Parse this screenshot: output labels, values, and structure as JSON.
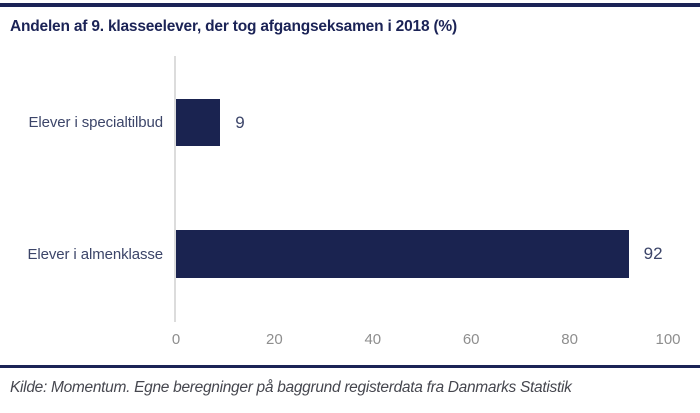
{
  "header": {
    "title": "Andelen af 9. klasseelever, der tog afgangseksamen i 2018 (%)"
  },
  "chart_data": {
    "type": "bar",
    "orientation": "horizontal",
    "title": "Andelen af 9. klasseelever, der tog afgangseksamen i 2018 (%)",
    "categories": [
      "Elever i specialtilbud",
      "Elever i almenklasse"
    ],
    "values": [
      9,
      92
    ],
    "value_labels": [
      "9",
      "92"
    ],
    "x_ticks": [
      "0",
      "20",
      "40",
      "60",
      "80",
      "100"
    ],
    "x_tick_values": [
      0,
      20,
      40,
      60,
      80,
      100
    ],
    "xlim": [
      0,
      100
    ],
    "xlabel": "",
    "ylabel": "",
    "grid": false,
    "legend": "none",
    "bar_color": "#1a2350",
    "label_color": "#3c4569",
    "tick_color": "#8e8e8e",
    "axis_line_color": "#dcdcdc"
  },
  "footer": {
    "source": "Kilde: Momentum. Egne beregninger på baggrund registerdata fra Danmarks Statistik"
  },
  "colors": {
    "accent_navy": "#1b2356",
    "background": "#ffffff"
  }
}
